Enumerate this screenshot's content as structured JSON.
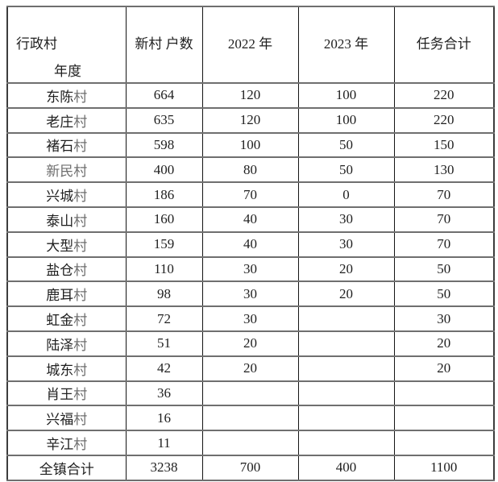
{
  "table": {
    "corner": {
      "top_label": "行政村",
      "bottom_label": "年度"
    },
    "header": {
      "columns": [
        "新村\n户数",
        "2022 年",
        "2023 年",
        "任务合计"
      ]
    },
    "rows": [
      {
        "name": "东陈村",
        "households": "664",
        "y2022": "120",
        "y2023": "100",
        "total": "220",
        "muted": false
      },
      {
        "name": "老庄村",
        "households": "635",
        "y2022": "120",
        "y2023": "100",
        "total": "220",
        "muted": false
      },
      {
        "name": "褚石村",
        "households": "598",
        "y2022": "100",
        "y2023": "50",
        "total": "150",
        "muted": false
      },
      {
        "name": "新民村",
        "households": "400",
        "y2022": "80",
        "y2023": "50",
        "total": "130",
        "muted": true
      },
      {
        "name": "兴城村",
        "households": "186",
        "y2022": "70",
        "y2023": "0",
        "total": "70",
        "muted": false
      },
      {
        "name": "泰山村",
        "households": "160",
        "y2022": "40",
        "y2023": "30",
        "total": "70",
        "muted": false
      },
      {
        "name": "大型村",
        "households": "159",
        "y2022": "40",
        "y2023": "30",
        "total": "70",
        "muted": false
      },
      {
        "name": "盐仓村",
        "households": "110",
        "y2022": "30",
        "y2023": "20",
        "total": "50",
        "muted": false
      },
      {
        "name": "鹿耳村",
        "households": "98",
        "y2022": "30",
        "y2023": "20",
        "total": "50",
        "muted": false
      },
      {
        "name": "虹金村",
        "households": "72",
        "y2022": "30",
        "y2023": "",
        "total": "30",
        "muted": false
      },
      {
        "name": "陆泽村",
        "households": "51",
        "y2022": "20",
        "y2023": "",
        "total": "20",
        "muted": false
      },
      {
        "name": "城东村",
        "households": "42",
        "y2022": "20",
        "y2023": "",
        "total": "20",
        "muted": false
      },
      {
        "name": "肖王村",
        "households": "36",
        "y2022": "",
        "y2023": "",
        "total": "",
        "muted": false
      },
      {
        "name": "兴福村",
        "households": "16",
        "y2022": "",
        "y2023": "",
        "total": "",
        "muted": false
      },
      {
        "name": "辛江村",
        "households": "11",
        "y2022": "",
        "y2023": "",
        "total": "",
        "muted": false
      }
    ],
    "footer": {
      "name": "全镇合计",
      "households": "3238",
      "y2022": "700",
      "y2023": "400",
      "total": "1100"
    }
  },
  "colors": {
    "text": "#1f1f1f",
    "muted_text": "#6e6e6e",
    "grid_horizontal": "#6f6f6f",
    "grid_vertical": "#141414",
    "outer_border": "#3c3c3c",
    "background": "#ffffff"
  }
}
